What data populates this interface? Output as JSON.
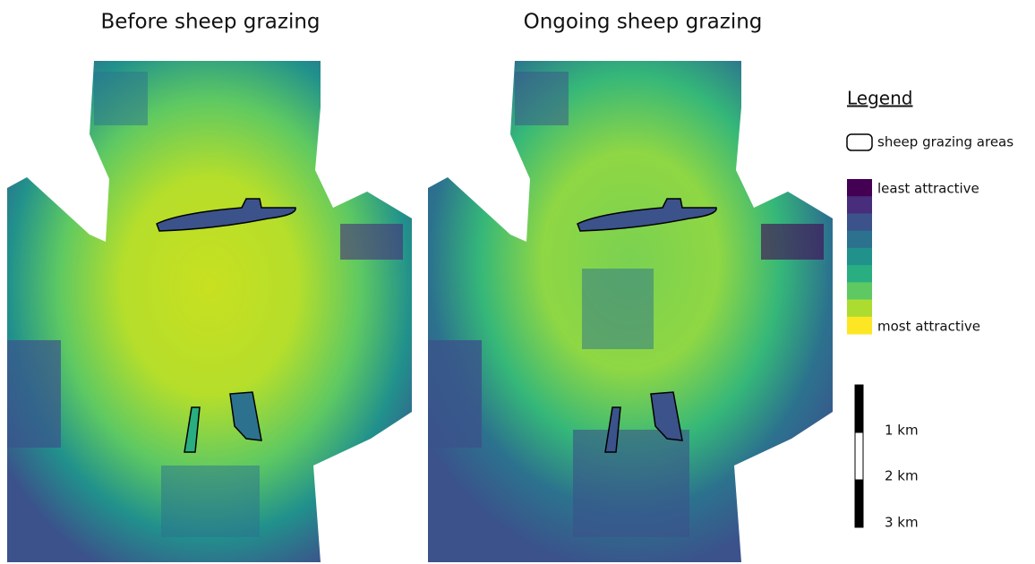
{
  "panels": [
    {
      "title": "Before sheep grazing"
    },
    {
      "title": "Ongoing sheep grazing"
    }
  ],
  "legend": {
    "title": "Legend",
    "outline_label": "sheep grazing areas",
    "color_scale": {
      "colors": [
        "#440154",
        "#472d7b",
        "#3b528b",
        "#2c728e",
        "#21918c",
        "#28ae80",
        "#5ec962",
        "#addc30",
        "#fde725"
      ],
      "low_label": "least attractive",
      "high_label": "most attractive"
    }
  },
  "scale_bar": {
    "labels": [
      "1 km",
      "2 km",
      "3 km"
    ]
  }
}
